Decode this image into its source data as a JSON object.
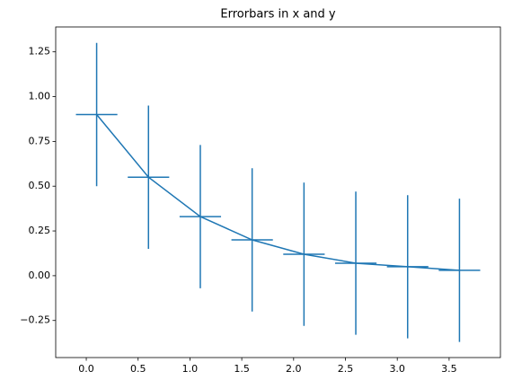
{
  "chart_data": {
    "type": "errorbar",
    "title": "Errorbars in x and y",
    "x": [
      0.1,
      0.6,
      1.1,
      1.6,
      2.1,
      2.6,
      3.1,
      3.6
    ],
    "values": [
      0.9,
      0.55,
      0.33,
      0.2,
      0.12,
      0.07,
      0.05,
      0.03
    ],
    "xerr": 0.2,
    "yerr": 0.4,
    "color": "#1f77b4",
    "xlim": [
      -0.295,
      3.995
    ],
    "xticks": [
      {
        "value": 0,
        "label": "0.0"
      },
      {
        "value": 0.5,
        "label": "0.5"
      },
      {
        "value": 1,
        "label": "1.0"
      },
      {
        "value": 1.5,
        "label": "1.5"
      },
      {
        "value": 2,
        "label": "2.0"
      },
      {
        "value": 2.5,
        "label": "2.5"
      },
      {
        "value": 3,
        "label": "3.0"
      },
      {
        "value": 3.5,
        "label": "3.5"
      }
    ],
    "ylim": [
      -0.457,
      1.389
    ],
    "yticks": [
      {
        "value": -0.25,
        "label": "−0.25"
      },
      {
        "value": 0,
        "label": "0.00"
      },
      {
        "value": 0.25,
        "label": "0.25"
      },
      {
        "value": 0.5,
        "label": "0.50"
      },
      {
        "value": 0.75,
        "label": "0.75"
      },
      {
        "value": 1,
        "label": "1.00"
      },
      {
        "value": 1.25,
        "label": "1.25"
      }
    ]
  }
}
